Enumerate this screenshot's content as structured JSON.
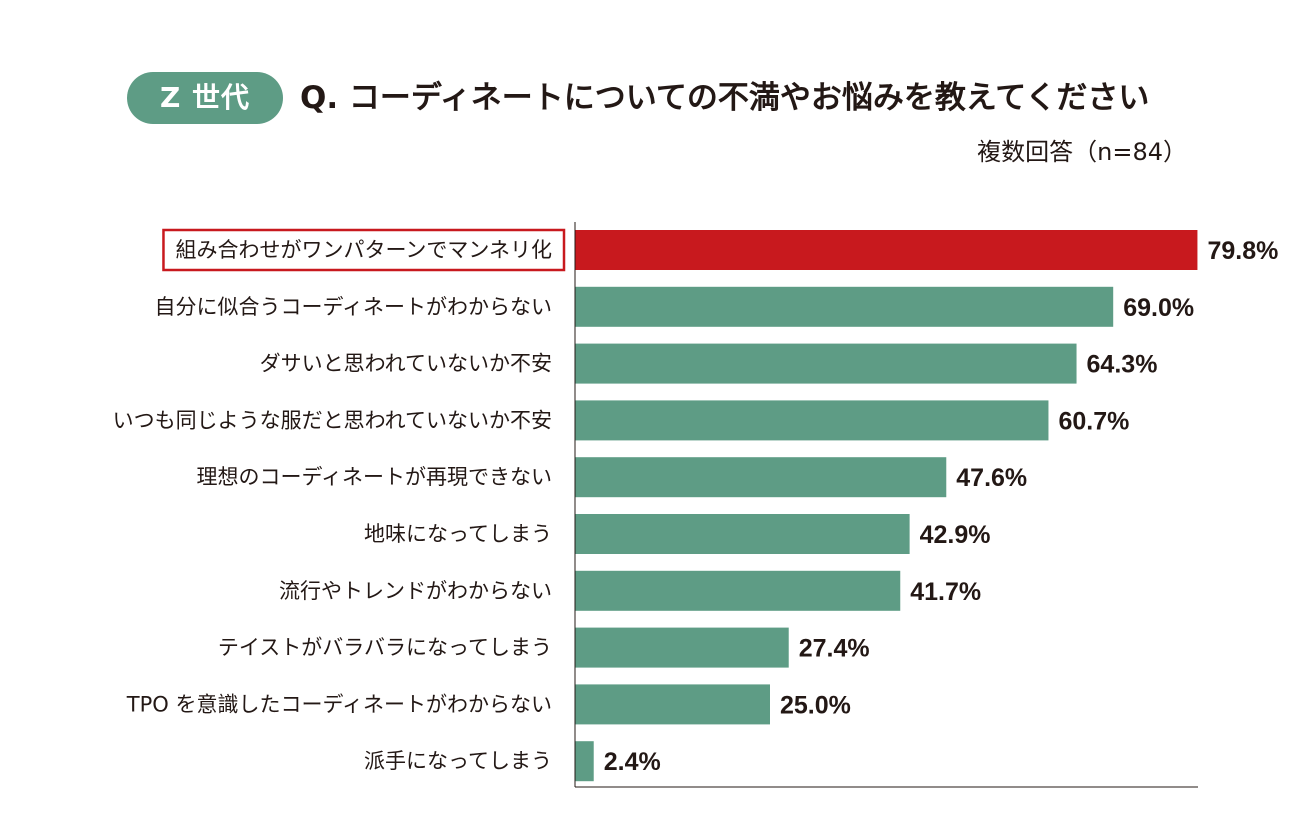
{
  "header": {
    "badge": "Z 世代",
    "question": "Q. コーディネートについての不満やお悩みを教えてください",
    "subtitle": "複数回答（n=84）"
  },
  "colors": {
    "highlight": "#c8191e",
    "bar": "#5e9c85",
    "badge": "#5e9c85",
    "text": "#231815"
  },
  "chart_data": {
    "type": "bar",
    "orientation": "horizontal",
    "title": "Q. コーディネートについての不満やお悩みを教えてください",
    "subtitle": "複数回答（n=84）",
    "xlabel": "",
    "ylabel": "",
    "xlim": [
      0,
      80
    ],
    "grid": false,
    "unit": "%",
    "highlight_index": 0,
    "categories": [
      "組み合わせがワンパターンでマンネリ化",
      "自分に似合うコーディネートがわからない",
      "ダサいと思われていないか不安",
      "いつも同じような服だと思われていないか不安",
      "理想のコーディネートが再現できない",
      "地味になってしまう",
      "流行やトレンドがわからない",
      "テイストがバラバラになってしまう",
      "TPO を意識したコーディネートがわからない",
      "派手になってしまう"
    ],
    "values": [
      79.8,
      69.0,
      64.3,
      60.7,
      47.6,
      42.9,
      41.7,
      27.4,
      25.0,
      2.4
    ],
    "value_labels": [
      "79.8%",
      "69.0%",
      "64.3%",
      "60.7%",
      "47.6%",
      "42.9%",
      "41.7%",
      "27.4%",
      "25.0%",
      "2.4%"
    ]
  }
}
